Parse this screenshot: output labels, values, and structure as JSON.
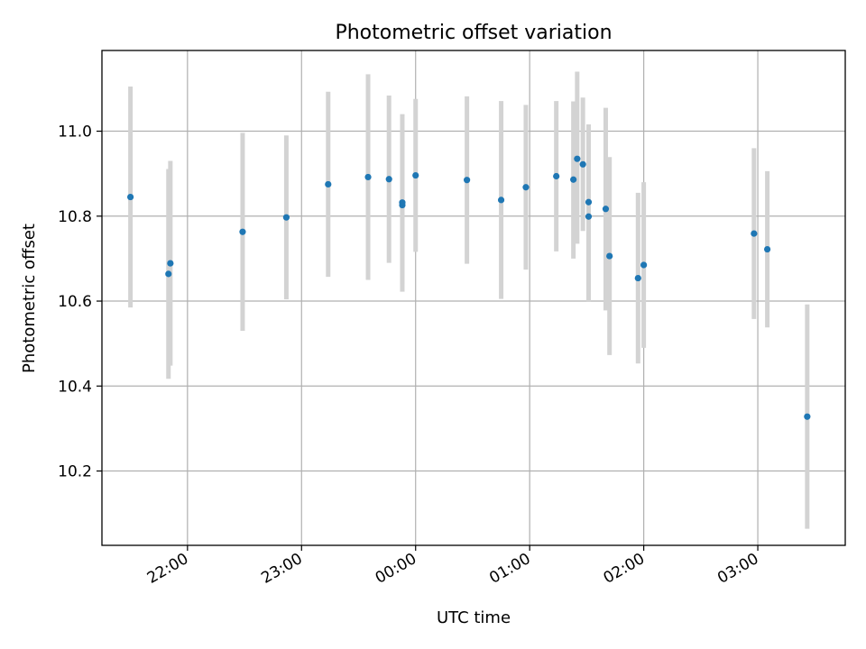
{
  "chart_data": {
    "type": "scatter",
    "title": "Photometric offset variation",
    "xlabel": "UTC time",
    "ylabel": "Photometric offset",
    "x_ticks": [
      "22:00",
      "23:00",
      "00:00",
      "01:00",
      "02:00",
      "03:00"
    ],
    "y_ticks": [
      "10.2",
      "10.4",
      "10.6",
      "10.8",
      "11.0"
    ],
    "xlim": [
      "21:15",
      "03:46"
    ],
    "ylim": [
      10.025,
      11.19
    ],
    "grid": true,
    "colors": {
      "marker": "#1f77b4",
      "errorbar": "#d3d3d3"
    },
    "series": [
      {
        "points": [
          {
            "x": "21:30",
            "y": 10.845,
            "yerr": [
              10.585,
              11.105
            ]
          },
          {
            "x": "21:50",
            "y": 10.664,
            "yerr": [
              10.417,
              10.911
            ]
          },
          {
            "x": "21:51",
            "y": 10.689,
            "yerr": [
              10.448,
              10.93
            ]
          },
          {
            "x": "22:29",
            "y": 10.763,
            "yerr": [
              10.53,
              10.996
            ]
          },
          {
            "x": "22:52",
            "y": 10.797,
            "yerr": [
              10.604,
              10.99
            ]
          },
          {
            "x": "23:14",
            "y": 10.875,
            "yerr": [
              10.657,
              11.093
            ]
          },
          {
            "x": "23:35",
            "y": 10.892,
            "yerr": [
              10.65,
              11.134
            ]
          },
          {
            "x": "23:46",
            "y": 10.887,
            "yerr": [
              10.69,
              11.084
            ]
          },
          {
            "x": "23:53",
            "y": 10.826,
            "yerr": [
              10.622,
              11.04
            ]
          },
          {
            "x": "23:53",
            "y": 10.832,
            "yerr": [
              10.64,
              11.0
            ]
          },
          {
            "x": "00:00",
            "y": 10.896,
            "yerr": [
              10.716,
              11.076
            ]
          },
          {
            "x": "00:27",
            "y": 10.885,
            "yerr": [
              10.688,
              11.082
            ]
          },
          {
            "x": "00:45",
            "y": 10.838,
            "yerr": [
              10.605,
              11.071
            ]
          },
          {
            "x": "00:58",
            "y": 10.868,
            "yerr": [
              10.674,
              11.062
            ]
          },
          {
            "x": "01:14",
            "y": 10.894,
            "yerr": [
              10.717,
              11.071
            ]
          },
          {
            "x": "01:23",
            "y": 10.886,
            "yerr": [
              10.7,
              11.07
            ]
          },
          {
            "x": "01:25",
            "y": 10.935,
            "yerr": [
              10.735,
              11.14
            ]
          },
          {
            "x": "01:28",
            "y": 10.922,
            "yerr": [
              10.765,
              11.079
            ]
          },
          {
            "x": "01:31",
            "y": 10.833,
            "yerr": [
              10.65,
              11.016
            ]
          },
          {
            "x": "01:31",
            "y": 10.799,
            "yerr": [
              10.598,
              11.0
            ]
          },
          {
            "x": "01:40",
            "y": 10.817,
            "yerr": [
              10.578,
              11.055
            ]
          },
          {
            "x": "01:42",
            "y": 10.706,
            "yerr": [
              10.473,
              10.939
            ]
          },
          {
            "x": "01:57",
            "y": 10.654,
            "yerr": [
              10.453,
              10.855
            ]
          },
          {
            "x": "02:00",
            "y": 10.685,
            "yerr": [
              10.49,
              10.88
            ]
          },
          {
            "x": "02:58",
            "y": 10.759,
            "yerr": [
              10.558,
              10.96
            ]
          },
          {
            "x": "03:05",
            "y": 10.722,
            "yerr": [
              10.538,
              10.906
            ]
          },
          {
            "x": "03:26",
            "y": 10.328,
            "yerr": [
              10.064,
              10.592
            ]
          }
        ]
      }
    ]
  }
}
